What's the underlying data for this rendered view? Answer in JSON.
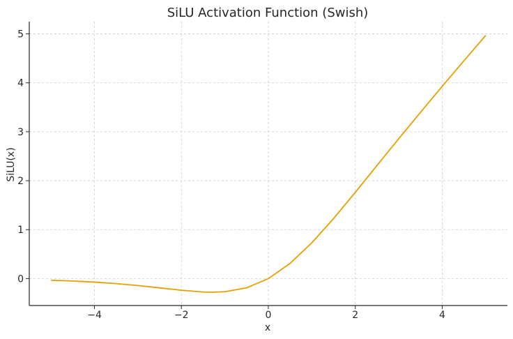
{
  "chart_data": {
    "type": "line",
    "title": "SiLU Activation Function (Swish)",
    "xlabel": "x",
    "ylabel": "SiLU(x)",
    "xlim": [
      -5.5,
      5.5
    ],
    "ylim": [
      -0.55,
      5.25
    ],
    "xticks": [
      -4,
      -2,
      0,
      2,
      4
    ],
    "xtick_labels": [
      "−4",
      "−2",
      "0",
      "2",
      "4"
    ],
    "yticks": [
      0,
      1,
      2,
      3,
      4,
      5
    ],
    "ytick_labels": [
      "0",
      "1",
      "2",
      "3",
      "4",
      "5"
    ],
    "grid": true,
    "series": [
      {
        "color": "#E69F00",
        "x": [
          -5.0,
          -4.5,
          -4.0,
          -3.5,
          -3.0,
          -2.5,
          -2.0,
          -1.5,
          -1.28,
          -1.0,
          -0.5,
          0.0,
          0.5,
          1.0,
          1.5,
          2.0,
          2.5,
          3.0,
          3.5,
          4.0,
          4.5,
          5.0
        ],
        "y": [
          -0.033,
          -0.049,
          -0.072,
          -0.103,
          -0.142,
          -0.189,
          -0.238,
          -0.274,
          -0.278,
          -0.269,
          -0.189,
          0.0,
          0.311,
          0.731,
          1.226,
          1.762,
          2.311,
          2.858,
          3.397,
          3.928,
          4.451,
          4.967
        ]
      }
    ]
  }
}
